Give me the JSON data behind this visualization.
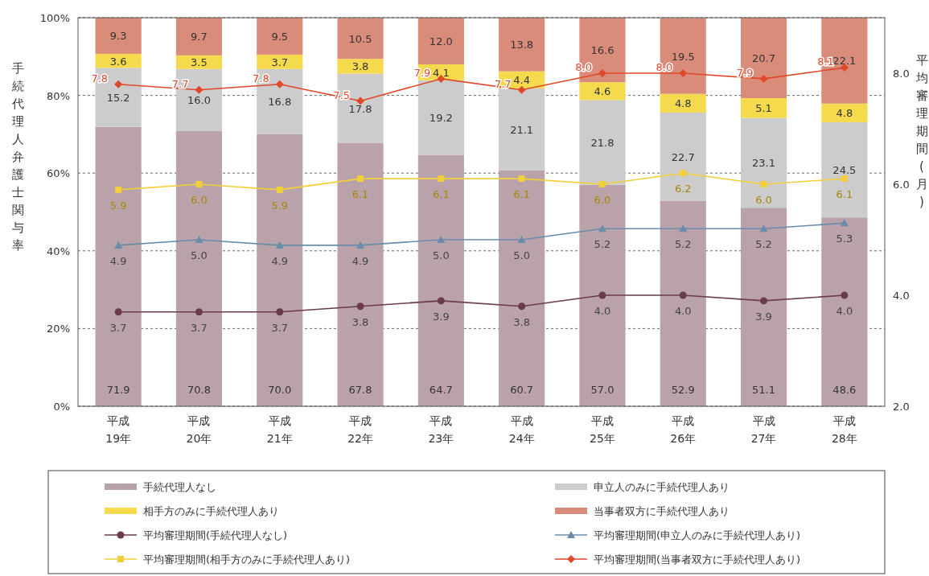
{
  "chart_data": {
    "type": "bar",
    "stacked": true,
    "ylabel": "手続代理人弁護士関与率",
    "y2label": "平均審理期間(月)",
    "categories": [
      "平成 19年",
      "平成 20年",
      "平成 21年",
      "平成 22年",
      "平成 23年",
      "平成 24年",
      "平成 25年",
      "平成 26年",
      "平成 27年",
      "平成 28年"
    ],
    "ylim": [
      0,
      100
    ],
    "yticks": [
      {
        "value": 0,
        "label": "0%"
      },
      {
        "value": 20,
        "label": "20%"
      },
      {
        "value": 40,
        "label": "40%"
      },
      {
        "value": 60,
        "label": "60%"
      },
      {
        "value": 80,
        "label": "80%"
      },
      {
        "value": 100,
        "label": "100%"
      }
    ],
    "y2lim": [
      2,
      9
    ],
    "y2ticks": [
      {
        "value": 2,
        "label": "2.0"
      },
      {
        "value": 4,
        "label": "4.0"
      },
      {
        "value": 6,
        "label": "6.0"
      },
      {
        "value": 8,
        "label": "8.0"
      }
    ],
    "grid": "y",
    "legend": "bottom",
    "series": [
      {
        "name": "手続代理人なし",
        "color": "#b9a2aa",
        "values": [
          71.9,
          70.8,
          70.0,
          67.8,
          64.7,
          60.7,
          57.0,
          52.9,
          51.1,
          48.6
        ],
        "value_labels": [
          "71.9",
          "70.8",
          "70.0",
          "67.8",
          "64.7",
          "60.7",
          "57.0",
          "52.9",
          "51.1",
          "48.6"
        ]
      },
      {
        "name": "申立人のみに手続代理人あり",
        "color": "#cccccc",
        "values": [
          15.2,
          16.0,
          16.8,
          17.8,
          19.2,
          21.1,
          21.8,
          22.7,
          23.1,
          24.5
        ],
        "value_labels": [
          "15.2",
          "16.0",
          "16.8",
          "17.8",
          "19.2",
          "21.1",
          "21.8",
          "22.7",
          "23.1",
          "24.5"
        ]
      },
      {
        "name": "相手方のみに手続代理人あり",
        "color": "#f6da4e",
        "values": [
          3.6,
          3.5,
          3.7,
          3.8,
          4.1,
          4.4,
          4.6,
          4.8,
          5.1,
          4.8
        ],
        "value_labels": [
          "3.6",
          "3.5",
          "3.7",
          "3.8",
          "4.1",
          "4.4",
          "4.6",
          "4.8",
          "5.1",
          "4.8"
        ]
      },
      {
        "name": "当事者双方に手続代理人あり",
        "color": "#d98c7a",
        "values": [
          9.3,
          9.7,
          9.5,
          10.5,
          12.0,
          13.8,
          16.6,
          19.5,
          20.7,
          22.1
        ],
        "value_labels": [
          "9.3",
          "9.7",
          "9.5",
          "10.5",
          "12.0",
          "13.8",
          "16.6",
          "19.5",
          "20.7",
          "22.1"
        ]
      },
      {
        "name": "平均審理期間(手続代理人なし)",
        "type": "line",
        "axis": "y2",
        "marker": "circle",
        "color": "#6b3a4c",
        "values": [
          3.7,
          3.7,
          3.7,
          3.8,
          3.9,
          3.8,
          4.0,
          4.0,
          3.9,
          4.0
        ],
        "value_labels": [
          "3.7",
          "3.7",
          "3.7",
          "3.8",
          "3.9",
          "3.8",
          "4.0",
          "4.0",
          "3.9",
          "4.0"
        ]
      },
      {
        "name": "平均審理期間(申立人のみに手続代理人あり)",
        "type": "line",
        "axis": "y2",
        "marker": "triangle",
        "color": "#6a8cab",
        "values": [
          4.9,
          5.0,
          4.9,
          4.9,
          5.0,
          5.0,
          5.2,
          5.2,
          5.2,
          5.3
        ],
        "value_labels": [
          "4.9",
          "5.0",
          "4.9",
          "4.9",
          "5.0",
          "5.0",
          "5.2",
          "5.2",
          "5.2",
          "5.3"
        ]
      },
      {
        "name": "平均審理期間(相手方のみに手続代理人あり)",
        "type": "line",
        "axis": "y2",
        "marker": "square",
        "color": "#f2cf3a",
        "values": [
          5.9,
          6.0,
          5.9,
          6.1,
          6.1,
          6.1,
          6.0,
          6.2,
          6.0,
          6.1
        ],
        "value_labels": [
          "5.9",
          "6.0",
          "5.9",
          "6.1",
          "6.1",
          "6.1",
          "6.0",
          "6.2",
          "6.0",
          "6.1"
        ]
      },
      {
        "name": "平均審理期間(当事者双方に手続代理人あり)",
        "type": "line",
        "axis": "y2",
        "marker": "diamond",
        "color": "#e0482a",
        "values": [
          7.8,
          7.7,
          7.8,
          7.5,
          7.9,
          7.7,
          8.0,
          8.0,
          7.9,
          8.1
        ],
        "value_labels": [
          "7.8",
          "7.7",
          "7.8",
          "7.5",
          "7.9",
          "7.7",
          "8.0",
          "8.0",
          "7.9",
          "8.1"
        ]
      }
    ]
  }
}
